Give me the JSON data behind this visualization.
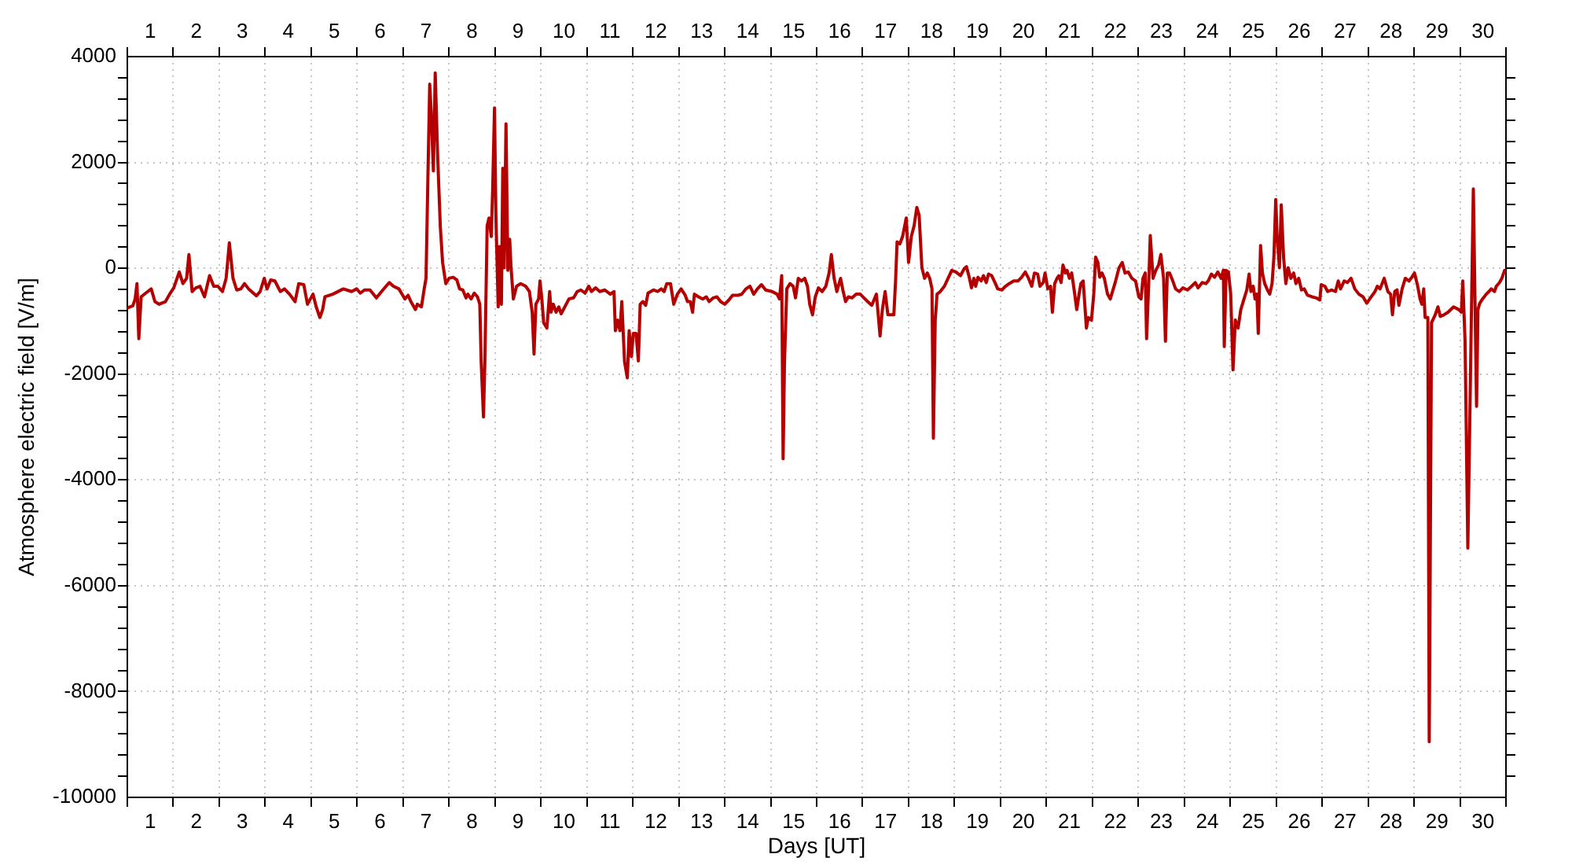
{
  "chart_data": {
    "type": "line",
    "xlabel": "Days [UT]",
    "ylabel": "Atmosphere electric field [V/m]",
    "grid": true,
    "xlim": [
      1,
      31
    ],
    "xticks": [
      {
        "value": 1,
        "label": null
      },
      {
        "value": 1.5,
        "label": "1"
      },
      {
        "value": 2,
        "label": null
      },
      {
        "value": 2.5,
        "label": "2"
      },
      {
        "value": 3,
        "label": null
      },
      {
        "value": 3.5,
        "label": "3"
      },
      {
        "value": 4,
        "label": null
      },
      {
        "value": 4.5,
        "label": "4"
      },
      {
        "value": 5,
        "label": null
      },
      {
        "value": 5.5,
        "label": "5"
      },
      {
        "value": 6,
        "label": null
      },
      {
        "value": 6.5,
        "label": "6"
      },
      {
        "value": 7,
        "label": null
      },
      {
        "value": 7.5,
        "label": "7"
      },
      {
        "value": 8,
        "label": null
      },
      {
        "value": 8.5,
        "label": "8"
      },
      {
        "value": 9,
        "label": null
      },
      {
        "value": 9.5,
        "label": "9"
      },
      {
        "value": 10,
        "label": null
      },
      {
        "value": 10.5,
        "label": "10"
      },
      {
        "value": 11,
        "label": null
      },
      {
        "value": 11.5,
        "label": "11"
      },
      {
        "value": 12,
        "label": null
      },
      {
        "value": 12.5,
        "label": "12"
      },
      {
        "value": 13,
        "label": null
      },
      {
        "value": 13.5,
        "label": "13"
      },
      {
        "value": 14,
        "label": null
      },
      {
        "value": 14.5,
        "label": "14"
      },
      {
        "value": 15,
        "label": null
      },
      {
        "value": 15.5,
        "label": "15"
      },
      {
        "value": 16,
        "label": null
      },
      {
        "value": 16.5,
        "label": "16"
      },
      {
        "value": 17,
        "label": null
      },
      {
        "value": 17.5,
        "label": "17"
      },
      {
        "value": 18,
        "label": null
      },
      {
        "value": 18.5,
        "label": "18"
      },
      {
        "value": 19,
        "label": null
      },
      {
        "value": 19.5,
        "label": "19"
      },
      {
        "value": 20,
        "label": null
      },
      {
        "value": 20.5,
        "label": "20"
      },
      {
        "value": 21,
        "label": null
      },
      {
        "value": 21.5,
        "label": "21"
      },
      {
        "value": 22,
        "label": null
      },
      {
        "value": 22.5,
        "label": "22"
      },
      {
        "value": 23,
        "label": null
      },
      {
        "value": 23.5,
        "label": "23"
      },
      {
        "value": 24,
        "label": null
      },
      {
        "value": 24.5,
        "label": "24"
      },
      {
        "value": 25,
        "label": null
      },
      {
        "value": 25.5,
        "label": "25"
      },
      {
        "value": 26,
        "label": null
      },
      {
        "value": 26.5,
        "label": "26"
      },
      {
        "value": 27,
        "label": null
      },
      {
        "value": 27.5,
        "label": "27"
      },
      {
        "value": 28,
        "label": null
      },
      {
        "value": 28.5,
        "label": "28"
      },
      {
        "value": 29,
        "label": null
      },
      {
        "value": 29.5,
        "label": "29"
      },
      {
        "value": 30,
        "label": null
      },
      {
        "value": 30.5,
        "label": "30"
      },
      {
        "value": 31,
        "label": null
      }
    ],
    "x2lim": [
      1,
      31
    ],
    "x2ticks": [
      {
        "value": 1,
        "label": null
      },
      {
        "value": 1.5,
        "label": "1"
      },
      {
        "value": 2,
        "label": null
      },
      {
        "value": 2.5,
        "label": "2"
      },
      {
        "value": 3,
        "label": null
      },
      {
        "value": 3.5,
        "label": "3"
      },
      {
        "value": 4,
        "label": null
      },
      {
        "value": 4.5,
        "label": "4"
      },
      {
        "value": 5,
        "label": null
      },
      {
        "value": 5.5,
        "label": "5"
      },
      {
        "value": 6,
        "label": null
      },
      {
        "value": 6.5,
        "label": "6"
      },
      {
        "value": 7,
        "label": null
      },
      {
        "value": 7.5,
        "label": "7"
      },
      {
        "value": 8,
        "label": null
      },
      {
        "value": 8.5,
        "label": "8"
      },
      {
        "value": 9,
        "label": null
      },
      {
        "value": 9.5,
        "label": "9"
      },
      {
        "value": 10,
        "label": null
      },
      {
        "value": 10.5,
        "label": "10"
      },
      {
        "value": 11,
        "label": null
      },
      {
        "value": 11.5,
        "label": "11"
      },
      {
        "value": 12,
        "label": null
      },
      {
        "value": 12.5,
        "label": "12"
      },
      {
        "value": 13,
        "label": null
      },
      {
        "value": 13.5,
        "label": "13"
      },
      {
        "value": 14,
        "label": null
      },
      {
        "value": 14.5,
        "label": "14"
      },
      {
        "value": 15,
        "label": null
      },
      {
        "value": 15.5,
        "label": "15"
      },
      {
        "value": 16,
        "label": null
      },
      {
        "value": 16.5,
        "label": "16"
      },
      {
        "value": 17,
        "label": null
      },
      {
        "value": 17.5,
        "label": "17"
      },
      {
        "value": 18,
        "label": null
      },
      {
        "value": 18.5,
        "label": "18"
      },
      {
        "value": 19,
        "label": null
      },
      {
        "value": 19.5,
        "label": "19"
      },
      {
        "value": 20,
        "label": null
      },
      {
        "value": 20.5,
        "label": "20"
      },
      {
        "value": 21,
        "label": null
      },
      {
        "value": 21.5,
        "label": "21"
      },
      {
        "value": 22,
        "label": null
      },
      {
        "value": 22.5,
        "label": "22"
      },
      {
        "value": 23,
        "label": null
      },
      {
        "value": 23.5,
        "label": "23"
      },
      {
        "value": 24,
        "label": null
      },
      {
        "value": 24.5,
        "label": "24"
      },
      {
        "value": 25,
        "label": null
      },
      {
        "value": 25.5,
        "label": "25"
      },
      {
        "value": 26,
        "label": null
      },
      {
        "value": 26.5,
        "label": "26"
      },
      {
        "value": 27,
        "label": null
      },
      {
        "value": 27.5,
        "label": "27"
      },
      {
        "value": 28,
        "label": null
      },
      {
        "value": 28.5,
        "label": "28"
      },
      {
        "value": 29,
        "label": null
      },
      {
        "value": 29.5,
        "label": "29"
      },
      {
        "value": 30,
        "label": null
      },
      {
        "value": 30.5,
        "label": "30"
      },
      {
        "value": 31,
        "label": null
      }
    ],
    "ylim": [
      -10000,
      4000
    ],
    "yticks": [
      -10000,
      {
        "value": -9600,
        "label": null
      },
      {
        "value": -9200,
        "label": null
      },
      {
        "value": -8800,
        "label": null
      },
      {
        "value": -8400,
        "label": null
      },
      -8000,
      {
        "value": -7600,
        "label": null
      },
      {
        "value": -7200,
        "label": null
      },
      {
        "value": -6800,
        "label": null
      },
      {
        "value": -6400,
        "label": null
      },
      -6000,
      {
        "value": -5600,
        "label": null
      },
      {
        "value": -5200,
        "label": null
      },
      {
        "value": -4800,
        "label": null
      },
      {
        "value": -4400,
        "label": null
      },
      -4000,
      {
        "value": -3600,
        "label": null
      },
      {
        "value": -3200,
        "label": null
      },
      {
        "value": -2800,
        "label": null
      },
      {
        "value": -2400,
        "label": null
      },
      -2000,
      {
        "value": -1600,
        "label": null
      },
      {
        "value": -1200,
        "label": null
      },
      {
        "value": -800,
        "label": null
      },
      {
        "value": -400,
        "label": null
      },
      0,
      {
        "value": 400,
        "label": null
      },
      {
        "value": 800,
        "label": null
      },
      {
        "value": 1200,
        "label": null
      },
      {
        "value": 1600,
        "label": null
      },
      2000,
      {
        "value": 2400,
        "label": null
      },
      {
        "value": 2800,
        "label": null
      },
      {
        "value": 3200,
        "label": null
      },
      {
        "value": 3600,
        "label": null
      },
      4000
    ],
    "x": [
      1.0,
      1.12,
      1.17,
      1.21,
      1.25,
      1.3,
      1.4,
      1.52,
      1.6,
      1.69,
      1.83,
      1.92,
      2.01,
      2.13,
      2.21,
      2.29,
      2.34,
      2.41,
      2.49,
      2.58,
      2.68,
      2.79,
      2.88,
      2.97,
      3.07,
      3.15,
      3.22,
      3.3,
      3.38,
      3.47,
      3.55,
      3.64,
      3.81,
      3.89,
      3.98,
      4.04,
      4.12,
      4.21,
      4.33,
      4.42,
      4.53,
      4.65,
      4.73,
      4.84,
      4.92,
      5.04,
      5.11,
      5.19,
      5.25,
      5.3,
      5.47,
      5.7,
      5.88,
      5.99,
      6.07,
      6.16,
      6.28,
      6.42,
      6.56,
      6.7,
      6.79,
      6.91,
      7.04,
      7.11,
      7.17,
      7.27,
      7.31,
      7.4,
      7.46,
      7.5,
      7.54,
      7.58,
      7.61,
      7.66,
      7.7,
      7.75,
      7.81,
      7.86,
      7.93,
      8.0,
      8.09,
      8.17,
      8.23,
      8.3,
      8.37,
      8.41,
      8.48,
      8.55,
      8.62,
      8.67,
      8.7,
      8.75,
      8.78,
      8.83,
      8.87,
      8.92,
      8.95,
      8.99,
      9.02,
      9.07,
      9.1,
      9.14,
      9.17,
      9.2,
      9.24,
      9.28,
      9.32,
      9.35,
      9.4,
      9.47,
      9.56,
      9.67,
      9.75,
      9.81,
      9.85,
      9.89,
      9.95,
      9.98,
      10.02,
      10.06,
      10.13,
      10.19,
      10.22,
      10.27,
      10.33,
      10.39,
      10.44,
      10.52,
      10.61,
      10.71,
      10.79,
      10.87,
      10.96,
      11.04,
      11.1,
      11.19,
      11.28,
      11.39,
      11.51,
      11.59,
      11.62,
      11.67,
      11.72,
      11.76,
      11.82,
      11.88,
      11.92,
      11.97,
      12.01,
      12.07,
      12.12,
      12.16,
      12.22,
      12.28,
      12.33,
      12.45,
      12.54,
      12.62,
      12.68,
      12.74,
      12.82,
      12.89,
      12.97,
      13.05,
      13.14,
      13.19,
      13.25,
      13.3,
      13.34,
      13.43,
      13.52,
      13.6,
      13.66,
      13.75,
      13.83,
      13.91,
      14.0,
      14.09,
      14.17,
      14.29,
      14.37,
      14.46,
      14.55,
      14.63,
      14.71,
      14.8,
      14.89,
      15.03,
      15.14,
      15.19,
      15.24,
      15.27,
      15.3,
      15.35,
      15.42,
      15.49,
      15.54,
      15.6,
      15.67,
      15.74,
      15.8,
      15.85,
      15.91,
      15.97,
      16.04,
      16.12,
      16.2,
      16.27,
      16.32,
      16.38,
      16.44,
      16.52,
      16.57,
      16.63,
      16.69,
      16.77,
      16.86,
      16.95,
      17.03,
      17.11,
      17.2,
      17.3,
      17.34,
      17.38,
      17.43,
      17.49,
      17.55,
      17.6,
      17.68,
      17.72,
      17.75,
      17.81,
      17.87,
      17.95,
      18.0,
      18.06,
      18.12,
      18.18,
      18.23,
      18.29,
      18.35,
      18.41,
      18.46,
      18.51,
      18.54,
      18.58,
      18.62,
      18.69,
      18.78,
      18.86,
      18.94,
      19.03,
      19.13,
      19.21,
      19.26,
      19.32,
      19.37,
      19.42,
      19.46,
      19.51,
      19.58,
      19.63,
      19.69,
      19.74,
      19.81,
      19.89,
      19.94,
      20.03,
      20.11,
      20.19,
      20.29,
      20.38,
      20.46,
      20.54,
      20.61,
      20.68,
      20.74,
      20.81,
      20.86,
      20.93,
      20.97,
      21.03,
      21.09,
      21.13,
      21.18,
      21.23,
      21.27,
      21.32,
      21.36,
      21.41,
      21.45,
      21.5,
      21.55,
      21.6,
      21.66,
      21.71,
      21.75,
      21.8,
      21.87,
      21.91,
      21.98,
      22.03,
      22.07,
      22.12,
      22.16,
      22.21,
      22.26,
      22.33,
      22.39,
      22.49,
      22.58,
      22.65,
      22.71,
      22.78,
      22.86,
      22.94,
      23.01,
      23.06,
      23.1,
      23.15,
      23.18,
      23.23,
      23.26,
      23.32,
      23.38,
      23.44,
      23.49,
      23.55,
      23.59,
      23.63,
      23.68,
      23.75,
      23.81,
      23.89,
      23.97,
      24.07,
      24.16,
      24.24,
      24.3,
      24.39,
      24.47,
      24.52,
      24.59,
      24.66,
      24.73,
      24.8,
      24.85,
      24.87,
      24.91,
      24.96,
      25.01,
      25.06,
      25.11,
      25.17,
      25.23,
      25.3,
      25.36,
      25.41,
      25.45,
      25.5,
      25.54,
      25.58,
      25.61,
      25.66,
      25.7,
      25.75,
      25.81,
      25.86,
      25.91,
      25.95,
      25.99,
      26.02,
      26.07,
      26.11,
      26.16,
      26.21,
      26.26,
      26.32,
      26.38,
      26.43,
      26.49,
      26.55,
      26.61,
      26.68,
      26.78,
      26.87,
      26.95,
      26.98,
      27.06,
      27.12,
      27.21,
      27.29,
      27.35,
      27.4,
      27.48,
      27.55,
      27.63,
      27.71,
      27.8,
      27.89,
      27.97,
      28.05,
      28.15,
      28.2,
      28.26,
      28.35,
      28.43,
      28.49,
      28.53,
      28.58,
      28.63,
      28.67,
      28.74,
      28.81,
      28.89,
      28.95,
      29.01,
      29.08,
      29.13,
      29.17,
      29.21,
      29.24,
      29.3,
      29.33,
      29.38,
      29.46,
      29.52,
      29.57,
      29.65,
      29.74,
      29.86,
      29.97,
      30.03,
      30.06,
      30.11,
      30.17,
      30.29,
      30.36,
      30.39,
      30.43,
      30.49,
      30.57,
      30.63,
      30.68,
      30.75,
      30.79,
      30.86,
      30.91,
      30.97
    ],
    "series": [
      {
        "color": "#b40000",
        "values": [
          -750,
          -710,
          -580,
          -290,
          -1330,
          -540,
          -470,
          -390,
          -630,
          -680,
          -630,
          -490,
          -370,
          -70,
          -290,
          -190,
          260,
          -440,
          -370,
          -340,
          -540,
          -140,
          -340,
          -340,
          -440,
          -190,
          480,
          -190,
          -410,
          -390,
          -290,
          -390,
          -520,
          -440,
          -190,
          -390,
          -220,
          -240,
          -440,
          -390,
          -490,
          -630,
          -290,
          -310,
          -680,
          -490,
          -730,
          -930,
          -780,
          -540,
          -490,
          -390,
          -440,
          -390,
          -470,
          -410,
          -410,
          -560,
          -410,
          -270,
          -340,
          -390,
          -580,
          -510,
          -630,
          -780,
          -680,
          -730,
          -390,
          -190,
          1690,
          3480,
          2980,
          1840,
          3690,
          2190,
          800,
          110,
          -290,
          -190,
          -170,
          -220,
          -390,
          -410,
          -560,
          -490,
          -580,
          -470,
          -540,
          -680,
          -1770,
          -2810,
          -1770,
          800,
          950,
          600,
          1500,
          3030,
          1000,
          -730,
          410,
          -680,
          1890,
          10,
          2730,
          -40,
          550,
          10,
          -580,
          -340,
          -290,
          -340,
          -440,
          -830,
          -1620,
          -680,
          -580,
          -240,
          -580,
          -1030,
          -1130,
          -440,
          -830,
          -680,
          -830,
          -730,
          -860,
          -730,
          -580,
          -560,
          -440,
          -410,
          -470,
          -340,
          -440,
          -370,
          -440,
          -410,
          -490,
          -440,
          -1180,
          -980,
          -1180,
          -630,
          -1770,
          -2070,
          -1180,
          -1670,
          -1230,
          -1230,
          -1750,
          -680,
          -630,
          -700,
          -470,
          -410,
          -440,
          -390,
          -440,
          -290,
          -290,
          -680,
          -490,
          -390,
          -510,
          -630,
          -630,
          -830,
          -490,
          -540,
          -580,
          -540,
          -630,
          -560,
          -540,
          -630,
          -680,
          -600,
          -510,
          -510,
          -490,
          -390,
          -340,
          -490,
          -390,
          -310,
          -410,
          -440,
          -490,
          -580,
          -140,
          -3600,
          -1770,
          -390,
          -290,
          -340,
          -560,
          -190,
          -240,
          -190,
          -340,
          -680,
          -880,
          -540,
          -370,
          -440,
          -340,
          -90,
          260,
          -190,
          -440,
          -190,
          -410,
          -630,
          -540,
          -560,
          -490,
          -490,
          -560,
          -630,
          -700,
          -490,
          -880,
          -1280,
          -780,
          -440,
          -880,
          -880,
          -880,
          -190,
          500,
          460,
          600,
          950,
          110,
          600,
          800,
          1150,
          1000,
          10,
          -190,
          -90,
          -190,
          -390,
          -3210,
          -980,
          -490,
          -440,
          -340,
          -190,
          -40,
          -70,
          -140,
          -10,
          30,
          -170,
          -370,
          -190,
          -340,
          -170,
          -240,
          -140,
          -270,
          -110,
          -140,
          -290,
          -390,
          -410,
          -340,
          -290,
          -240,
          -240,
          -170,
          -70,
          -190,
          -340,
          -90,
          -110,
          -340,
          -270,
          -90,
          -390,
          -340,
          -830,
          -290,
          -190,
          -140,
          -270,
          60,
          -90,
          -40,
          -190,
          -90,
          -390,
          -780,
          -490,
          -290,
          -240,
          -1130,
          -930,
          -980,
          -490,
          210,
          110,
          -170,
          -90,
          -190,
          -490,
          -580,
          -290,
          10,
          110,
          -90,
          -70,
          -190,
          -240,
          -540,
          -580,
          -190,
          -90,
          -1330,
          -190,
          620,
          -190,
          -40,
          60,
          260,
          -190,
          -1380,
          -90,
          -90,
          -240,
          -390,
          -440,
          -370,
          -410,
          -340,
          -270,
          -370,
          -270,
          -290,
          -240,
          -110,
          -170,
          -70,
          -190,
          -40,
          -1480,
          -40,
          -70,
          -490,
          -1920,
          -980,
          -1130,
          -780,
          -580,
          -410,
          -110,
          -440,
          -340,
          -580,
          -490,
          -1230,
          430,
          -90,
          -290,
          -410,
          -490,
          -290,
          210,
          1300,
          600,
          10,
          1200,
          210,
          -290,
          10,
          -190,
          -90,
          -290,
          -190,
          -410,
          -390,
          -510,
          -540,
          -560,
          -600,
          -310,
          -340,
          -440,
          -410,
          -440,
          -240,
          -390,
          -240,
          -270,
          -190,
          -390,
          -490,
          -540,
          -660,
          -560,
          -440,
          -340,
          -390,
          -190,
          -440,
          -490,
          -880,
          -440,
          -410,
          -700,
          -390,
          -190,
          -240,
          -170,
          -90,
          -340,
          -580,
          -680,
          -390,
          -930,
          -930,
          -8950,
          -1030,
          -880,
          -730,
          -910,
          -880,
          -830,
          -730,
          -780,
          -830,
          -240,
          -1380,
          -5290,
          1500,
          -2610,
          -780,
          -660,
          -580,
          -490,
          -440,
          -390,
          -440,
          -340,
          -270,
          -190,
          -40
        ]
      }
    ]
  }
}
